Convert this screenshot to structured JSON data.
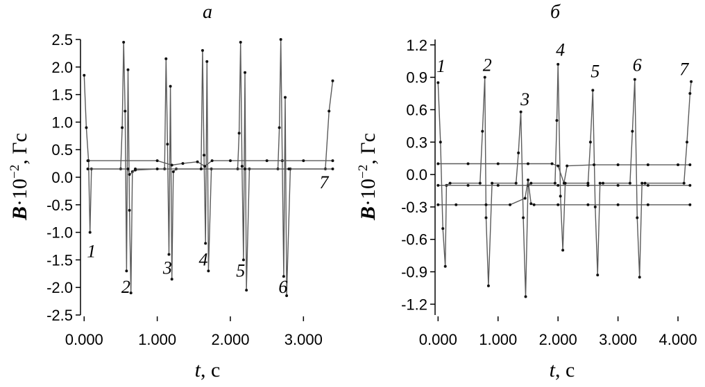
{
  "chart_data": [
    {
      "panel": "a",
      "type": "line",
      "xlabel_var": "t",
      "xlabel_unit": ", с",
      "ylabel_var": "B",
      "ylabel_rest": "·10",
      "ylabel_exp": "−2",
      "ylabel_unit": ", Гс",
      "xlim": [
        -0.05,
        3.5
      ],
      "ylim": [
        -2.5,
        2.5
      ],
      "xticks": [
        0,
        1,
        2,
        3
      ],
      "xtick_labels": [
        "0.000",
        "1.000",
        "2.000",
        "3.000"
      ],
      "yticks": [
        2.5,
        2.0,
        1.5,
        1.0,
        0.5,
        0.0,
        -0.5,
        -1.0,
        -1.5,
        -2.0,
        -2.5
      ],
      "ytick_labels": [
        "2.5",
        "2.0",
        "1.5",
        "1.0",
        "0.5",
        "0.0",
        "-0.5",
        "-1.0",
        "-1.5",
        "-2.0",
        "-2.5"
      ],
      "series": [
        {
          "x": [
            0.0,
            0.03,
            0.06,
            0.08,
            0.1,
            0.5,
            0.52,
            0.54,
            0.56,
            0.58,
            0.6,
            0.62,
            0.64,
            0.66,
            0.7,
            1.1,
            1.12,
            1.14,
            1.16,
            1.18,
            1.2,
            1.22,
            1.26,
            1.6,
            1.62,
            1.64,
            1.66,
            1.68,
            1.7,
            1.74,
            2.1,
            2.12,
            2.14,
            2.16,
            2.18,
            2.2,
            2.22,
            2.26,
            2.65,
            2.67,
            2.69,
            2.71,
            2.73,
            2.75,
            2.77,
            2.82,
            3.3,
            3.35,
            3.4
          ],
          "y": [
            1.85,
            0.9,
            0.3,
            -1.0,
            0.15,
            0.15,
            0.9,
            2.45,
            1.2,
            -1.7,
            1.95,
            -0.6,
            -2.1,
            0.1,
            0.15,
            0.15,
            2.15,
            0.6,
            -1.4,
            1.65,
            -1.85,
            0.1,
            0.15,
            0.15,
            2.3,
            0.4,
            -1.2,
            2.1,
            -1.7,
            0.15,
            0.15,
            0.8,
            2.45,
            0.2,
            -1.5,
            1.9,
            -2.05,
            0.15,
            0.15,
            0.9,
            2.5,
            0.3,
            -1.8,
            1.45,
            -2.15,
            0.15,
            0.15,
            1.2,
            1.75
          ]
        },
        {
          "x": [
            0.05,
            1.0,
            1.2,
            1.35,
            1.55,
            1.65,
            1.75,
            2.0,
            2.5,
            3.0,
            3.4
          ],
          "y": [
            0.3,
            0.3,
            0.22,
            0.25,
            0.28,
            0.2,
            0.3,
            0.3,
            0.3,
            0.3,
            0.3
          ]
        },
        {
          "x": [
            0.05,
            0.6,
            0.62,
            0.7,
            1.0,
            1.6,
            2.2,
            2.8,
            3.4
          ],
          "y": [
            0.15,
            0.15,
            0.05,
            0.13,
            0.15,
            0.15,
            0.15,
            0.15,
            0.15
          ]
        }
      ],
      "labels": [
        {
          "text": "1",
          "x": 0.1,
          "y": -1.45
        },
        {
          "text": "2",
          "x": 0.57,
          "y": -2.1
        },
        {
          "text": "3",
          "x": 1.14,
          "y": -1.75
        },
        {
          "text": "4",
          "x": 1.63,
          "y": -1.6
        },
        {
          "text": "5",
          "x": 2.14,
          "y": -1.8
        },
        {
          "text": "6",
          "x": 2.72,
          "y": -2.1
        },
        {
          "text": "7",
          "x": 3.28,
          "y": -0.2
        }
      ]
    },
    {
      "panel": "б",
      "type": "line",
      "xlabel_var": "t",
      "xlabel_unit": ", с",
      "ylabel_var": "B",
      "ylabel_rest": "·10",
      "ylabel_exp": "−2",
      "ylabel_unit": ", Гс",
      "xlim": [
        -0.05,
        4.3
      ],
      "ylim": [
        -1.3,
        1.25
      ],
      "xticks": [
        0,
        1,
        2,
        3,
        4
      ],
      "xtick_labels": [
        "0.000",
        "1.000",
        "2.000",
        "3.000",
        "4.000"
      ],
      "yticks": [
        1.2,
        0.9,
        0.6,
        0.3,
        0.0,
        -0.3,
        -0.6,
        -0.9,
        -1.2
      ],
      "ytick_labels": [
        "1.2",
        "0.9",
        "0.6",
        "0.3",
        "0.0",
        "-0.3",
        "-0.6",
        "-0.9",
        "-1.2"
      ],
      "series": [
        {
          "x": [
            0.0,
            0.04,
            0.08,
            0.12,
            0.14,
            0.2,
            0.7,
            0.74,
            0.78,
            0.8,
            0.84,
            0.9,
            1.3,
            1.34,
            1.38,
            1.42,
            1.46,
            1.5,
            1.55,
            1.95,
            1.98,
            2.0,
            2.04,
            2.08,
            2.12,
            2.5,
            2.54,
            2.58,
            2.62,
            2.66,
            2.7,
            2.75,
            3.2,
            3.24,
            3.28,
            3.32,
            3.36,
            3.4,
            3.45,
            4.1,
            4.15,
            4.2,
            4.22
          ],
          "y": [
            0.85,
            0.3,
            -0.5,
            -0.85,
            -0.1,
            -0.08,
            -0.08,
            0.4,
            0.9,
            -0.4,
            -1.03,
            -0.08,
            -0.08,
            0.2,
            0.58,
            -0.4,
            -1.13,
            -0.1,
            -0.08,
            -0.08,
            0.5,
            1.02,
            -0.2,
            -0.7,
            -0.08,
            -0.08,
            0.3,
            0.78,
            -0.3,
            -0.93,
            -0.08,
            -0.08,
            -0.08,
            0.4,
            0.88,
            -0.4,
            -0.95,
            -0.08,
            -0.08,
            -0.08,
            0.3,
            0.75,
            0.86
          ]
        },
        {
          "x": [
            0.0,
            0.5,
            1.0,
            1.5,
            1.9,
            2.0,
            2.1,
            2.15,
            2.6,
            3.0,
            3.5,
            4.0,
            4.2
          ],
          "y": [
            0.1,
            0.1,
            0.1,
            0.1,
            0.1,
            0.08,
            -0.08,
            0.08,
            0.09,
            0.09,
            0.09,
            0.09,
            0.09
          ]
        },
        {
          "x": [
            0.0,
            0.5,
            1.0,
            1.5,
            2.0,
            2.5,
            3.0,
            3.5,
            4.2
          ],
          "y": [
            -0.1,
            -0.1,
            -0.1,
            -0.1,
            -0.1,
            -0.1,
            -0.1,
            -0.1,
            -0.1
          ]
        },
        {
          "x": [
            0.0,
            0.3,
            0.8,
            1.2,
            1.45,
            1.5,
            1.55,
            1.6,
            2.0,
            2.5,
            3.0,
            3.5,
            4.2
          ],
          "y": [
            -0.28,
            -0.28,
            -0.28,
            -0.28,
            -0.22,
            -0.05,
            -0.27,
            -0.28,
            -0.28,
            -0.28,
            -0.28,
            -0.28,
            -0.28
          ]
        }
      ],
      "labels": [
        {
          "text": "1",
          "x": 0.05,
          "y": 0.95
        },
        {
          "text": "2",
          "x": 0.82,
          "y": 0.96
        },
        {
          "text": "3",
          "x": 1.45,
          "y": 0.64
        },
        {
          "text": "4",
          "x": 2.04,
          "y": 1.1
        },
        {
          "text": "5",
          "x": 2.62,
          "y": 0.9
        },
        {
          "text": "6",
          "x": 3.32,
          "y": 0.96
        },
        {
          "text": "7",
          "x": 4.1,
          "y": 0.92
        }
      ]
    }
  ]
}
